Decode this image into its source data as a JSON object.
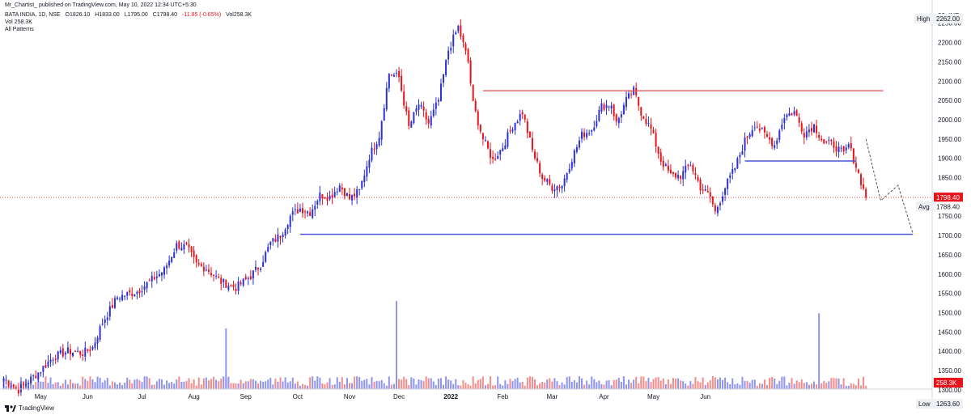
{
  "header": {
    "publish_line": "Mr_Chartist_ published on TradingView.com, May 10, 2022 12:34 UTC+5:30",
    "symbol": "BATA INDIA, 1D, NSE",
    "open": "O1826.10",
    "high": "H1833.00",
    "low": "L1795.00",
    "close": "C1798.40",
    "change": "-11.85 (-0.65%)",
    "vol_inline": "Vol258.3K",
    "vol_line": "Vol 258.3K",
    "indicator": "All Patterns"
  },
  "brand": {
    "name": "TradingView",
    "icon": "tradingview-logo-icon"
  },
  "colors": {
    "up": "#2b31d6",
    "down": "#e8131b",
    "vol_up": "#8f94ec",
    "vol_down": "#f48c8c",
    "resistance": "#e85a5a",
    "support": "#4a52d6",
    "projection": "#555555"
  },
  "chart_data": {
    "type": "candlestick",
    "currency": "INR",
    "x_ticks": [
      "May",
      "Jun",
      "Jul",
      "Aug",
      "Sep",
      "Oct",
      "Nov",
      "Dec",
      "2022",
      "Feb",
      "Mar",
      "Apr",
      "May",
      "Jun"
    ],
    "y_ticks": [
      1300,
      1350,
      1400,
      1450,
      1500,
      1550,
      1600,
      1650,
      1700,
      1750,
      1800,
      1850,
      1900,
      1950,
      2000,
      2050,
      2100,
      2150,
      2200,
      2250
    ],
    "ylim": [
      1262,
      2285
    ],
    "last_price": "1798.40",
    "avg_price": "1788.40",
    "avg_label": "Avg",
    "high_label": "High",
    "high_value": "2262.00",
    "low_label": "Low",
    "low_value": "1263.60",
    "volume_badge": "258.3K",
    "scale_top_label": "23",
    "unit_label": "INR",
    "price_path": [
      [
        0,
        1330
      ],
      [
        6,
        1300
      ],
      [
        14,
        1345
      ],
      [
        20,
        1385
      ],
      [
        26,
        1400
      ],
      [
        32,
        1395
      ],
      [
        36,
        1410
      ],
      [
        40,
        1475
      ],
      [
        46,
        1540
      ],
      [
        54,
        1555
      ],
      [
        60,
        1585
      ],
      [
        65,
        1610
      ],
      [
        70,
        1675
      ],
      [
        74,
        1670
      ],
      [
        78,
        1625
      ],
      [
        82,
        1615
      ],
      [
        88,
        1580
      ],
      [
        94,
        1565
      ],
      [
        100,
        1595
      ],
      [
        104,
        1625
      ],
      [
        108,
        1680
      ],
      [
        112,
        1700
      ],
      [
        116,
        1750
      ],
      [
        120,
        1770
      ],
      [
        124,
        1760
      ],
      [
        128,
        1805
      ],
      [
        132,
        1800
      ],
      [
        136,
        1830
      ],
      [
        140,
        1795
      ],
      [
        144,
        1815
      ],
      [
        148,
        1905
      ],
      [
        152,
        1960
      ],
      [
        156,
        2120
      ],
      [
        160,
        2110
      ],
      [
        164,
        1980
      ],
      [
        168,
        2040
      ],
      [
        172,
        1990
      ],
      [
        176,
        2050
      ],
      [
        180,
        2180
      ],
      [
        184,
        2240
      ],
      [
        188,
        2150
      ],
      [
        190,
        2040
      ],
      [
        194,
        1950
      ],
      [
        198,
        1895
      ],
      [
        202,
        1930
      ],
      [
        206,
        1985
      ],
      [
        210,
        2020
      ],
      [
        214,
        1920
      ],
      [
        218,
        1850
      ],
      [
        222,
        1825
      ],
      [
        226,
        1830
      ],
      [
        230,
        1900
      ],
      [
        234,
        1960
      ],
      [
        238,
        1975
      ],
      [
        242,
        2035
      ],
      [
        246,
        2040
      ],
      [
        248,
        1990
      ],
      [
        252,
        2050
      ],
      [
        255,
        2075
      ],
      [
        258,
        2020
      ],
      [
        262,
        1975
      ],
      [
        266,
        1895
      ],
      [
        270,
        1855
      ],
      [
        274,
        1855
      ],
      [
        278,
        1885
      ],
      [
        282,
        1825
      ],
      [
        286,
        1800
      ],
      [
        288,
        1760
      ],
      [
        292,
        1825
      ],
      [
        296,
        1875
      ],
      [
        300,
        1945
      ],
      [
        304,
        1990
      ],
      [
        308,
        1960
      ],
      [
        312,
        1935
      ],
      [
        316,
        2010
      ],
      [
        320,
        2020
      ],
      [
        324,
        1965
      ],
      [
        328,
        1985
      ],
      [
        332,
        1940
      ],
      [
        336,
        1935
      ],
      [
        340,
        1910
      ],
      [
        342,
        1935
      ],
      [
        345,
        1880
      ],
      [
        347,
        1840
      ],
      [
        349,
        1798.4
      ]
    ],
    "projection": [
      [
        349,
        1950
      ],
      [
        355,
        1790
      ],
      [
        362,
        1830
      ],
      [
        368,
        1705
      ]
    ],
    "resistance_line": {
      "value": 2075,
      "from": 194,
      "to": 356
    },
    "support_line": {
      "value": 1703,
      "from": 120,
      "to": 368
    },
    "neckline": {
      "value": 1893,
      "from": 300,
      "to": 345
    },
    "volume_spikes": [
      [
        30,
        1.0
      ],
      [
        53,
        1.45
      ],
      [
        110,
        1.25
      ]
    ]
  }
}
